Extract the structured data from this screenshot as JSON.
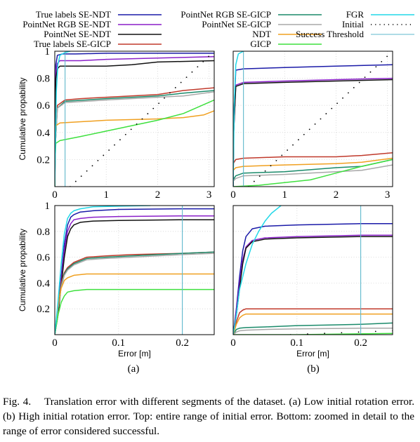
{
  "figure": {
    "label": "Fig. 4.",
    "caption": "Translation error with different segments of the dataset. (a) Low initial rotation error. (b) High initial rotation error. Top: entire range of initial error. Bottom: zoomed in detail to the range of error considered successful."
  },
  "colors": {
    "true_ndt": "#1a1aa8",
    "rgb_ndt": "#8a1fc9",
    "pn_ndt": "#111111",
    "true_gicp": "#c0392b",
    "rgb_gicp": "#1a8a6a",
    "pn_gicp": "#a8a8a8",
    "ndt": "#f0a020",
    "gicp": "#3ee03e",
    "fgr": "#22d8e8",
    "initial": "#000000",
    "threshold": "#5fb8cc"
  },
  "chart_data": [
    {
      "type": "line",
      "panel": "(a)",
      "position": "top",
      "xlabel": "",
      "ylabel": "Cumulative propability",
      "xlim": [
        0,
        3.1
      ],
      "ylim": [
        0,
        1
      ],
      "xticks": [
        "0",
        "1",
        "2",
        "3"
      ],
      "yticks": [
        "0.2",
        "0.4",
        "0.6",
        "0.8",
        "1"
      ],
      "series": [
        {
          "name": "True labels SE-NDT",
          "key": "true_ndt",
          "x": [
            0,
            0.005,
            0.02,
            0.05,
            0.15,
            0.4,
            1,
            2,
            3.1
          ],
          "y": [
            0,
            0.4,
            0.9,
            0.97,
            0.98,
            0.98,
            0.985,
            0.985,
            0.985
          ]
        },
        {
          "name": "PointNet RGB SE-NDT",
          "key": "rgb_ndt",
          "x": [
            0,
            0.005,
            0.02,
            0.05,
            0.1,
            0.5,
            1,
            2,
            3.1
          ],
          "y": [
            0,
            0.4,
            0.85,
            0.91,
            0.93,
            0.93,
            0.94,
            0.95,
            0.96
          ]
        },
        {
          "name": "PointNet SE-NDT",
          "key": "pn_ndt",
          "x": [
            0,
            0.005,
            0.02,
            0.05,
            0.1,
            1,
            1.5,
            2,
            3.1
          ],
          "y": [
            0,
            0.4,
            0.8,
            0.87,
            0.89,
            0.89,
            0.9,
            0.92,
            0.93
          ]
        },
        {
          "name": "True labels SE-GICP",
          "key": "true_gicp",
          "x": [
            0,
            0.01,
            0.05,
            0.2,
            0.5,
            1,
            2,
            2.5,
            3.1
          ],
          "y": [
            0,
            0.3,
            0.6,
            0.64,
            0.65,
            0.66,
            0.68,
            0.71,
            0.73
          ]
        },
        {
          "name": "PointNet RGB SE-GICP",
          "key": "rgb_gicp",
          "x": [
            0,
            0.01,
            0.05,
            0.2,
            1,
            2,
            2.5,
            3.1
          ],
          "y": [
            0,
            0.3,
            0.58,
            0.63,
            0.65,
            0.67,
            0.69,
            0.71
          ]
        },
        {
          "name": "PointNet SE-GICP",
          "key": "pn_gicp",
          "x": [
            0,
            0.01,
            0.05,
            0.2,
            1,
            2,
            2.5,
            3.1
          ],
          "y": [
            0,
            0.3,
            0.58,
            0.62,
            0.64,
            0.66,
            0.67,
            0.7
          ]
        },
        {
          "name": "NDT",
          "key": "ndt",
          "x": [
            0,
            0.005,
            0.02,
            0.1,
            1,
            2,
            2.5,
            2.9,
            3.1
          ],
          "y": [
            0,
            0.3,
            0.45,
            0.47,
            0.49,
            0.5,
            0.51,
            0.53,
            0.56
          ]
        },
        {
          "name": "GICP",
          "key": "gicp",
          "x": [
            0,
            0.005,
            0.02,
            0.1,
            0.5,
            1,
            1.5,
            2,
            2.5,
            3.1
          ],
          "y": [
            0,
            0.2,
            0.32,
            0.34,
            0.37,
            0.41,
            0.45,
            0.49,
            0.54,
            0.64
          ]
        },
        {
          "name": "FGR",
          "key": "fgr",
          "x": [
            0,
            0.03,
            0.06,
            0.1,
            0.2,
            0.3
          ],
          "y": [
            0,
            0.7,
            0.9,
            0.97,
            0.99,
            1
          ]
        },
        {
          "name": "Initial",
          "key": "initial",
          "style": "dotted",
          "x": [
            0.3,
            3.1
          ],
          "y": [
            0,
            1
          ]
        }
      ],
      "threshold": {
        "name": "Success Threshold",
        "x": 0.2
      }
    },
    {
      "type": "line",
      "panel": "(b)",
      "position": "top",
      "xlabel": "",
      "ylabel": "",
      "xlim": [
        0,
        3.1
      ],
      "ylim": [
        0,
        1
      ],
      "xticks": [
        "0",
        "1",
        "2",
        "3"
      ],
      "yticks": [],
      "series": [
        {
          "name": "True labels SE-NDT",
          "key": "true_ndt",
          "x": [
            0,
            0.01,
            0.05,
            0.2,
            1,
            2,
            3.1
          ],
          "y": [
            0,
            0.5,
            0.86,
            0.87,
            0.88,
            0.89,
            0.9
          ]
        },
        {
          "name": "PointNet RGB SE-NDT",
          "key": "rgb_ndt",
          "x": [
            0,
            0.01,
            0.05,
            0.2,
            1,
            2,
            3.1
          ],
          "y": [
            0,
            0.4,
            0.75,
            0.77,
            0.78,
            0.79,
            0.8
          ]
        },
        {
          "name": "PointNet SE-NDT",
          "key": "pn_ndt",
          "x": [
            0,
            0.01,
            0.05,
            0.2,
            1,
            2,
            3.1
          ],
          "y": [
            0,
            0.4,
            0.74,
            0.76,
            0.77,
            0.78,
            0.79
          ]
        },
        {
          "name": "True labels SE-GICP",
          "key": "true_gicp",
          "x": [
            0,
            0.05,
            0.2,
            1,
            2,
            2.5,
            3.1
          ],
          "y": [
            0.17,
            0.2,
            0.21,
            0.22,
            0.22,
            0.23,
            0.25
          ]
        },
        {
          "name": "PointNet RGB SE-GICP",
          "key": "rgb_gicp",
          "x": [
            0,
            0.05,
            0.2,
            1,
            2,
            2.5,
            3.1
          ],
          "y": [
            0.05,
            0.08,
            0.1,
            0.11,
            0.14,
            0.15,
            0.2
          ]
        },
        {
          "name": "PointNet SE-GICP",
          "key": "pn_gicp",
          "x": [
            0,
            0.05,
            0.2,
            1,
            2,
            2.5,
            3.1
          ],
          "y": [
            0.04,
            0.06,
            0.08,
            0.09,
            0.11,
            0.12,
            0.16
          ]
        },
        {
          "name": "NDT",
          "key": "ndt",
          "x": [
            0,
            0.05,
            0.2,
            1,
            2,
            2.5,
            3.1
          ],
          "y": [
            0.12,
            0.14,
            0.15,
            0.16,
            0.17,
            0.18,
            0.21
          ]
        },
        {
          "name": "GICP",
          "key": "gicp",
          "x": [
            0,
            0.5,
            1,
            1.5,
            2,
            2.5,
            3.1
          ],
          "y": [
            0,
            0.01,
            0.03,
            0.05,
            0.1,
            0.15,
            0.2
          ]
        },
        {
          "name": "FGR",
          "key": "fgr",
          "x": [
            0,
            0.02,
            0.05,
            0.1,
            0.2
          ],
          "y": [
            0,
            0.6,
            0.9,
            0.98,
            1
          ]
        },
        {
          "name": "Initial",
          "key": "initial",
          "style": "dotted",
          "x": [
            0.3,
            3.1
          ],
          "y": [
            0,
            1
          ]
        }
      ],
      "threshold": {
        "name": "Success Threshold",
        "x": 0.2
      }
    },
    {
      "type": "line",
      "panel": "(a)",
      "position": "bottom",
      "xlabel": "Error [m]",
      "ylabel": "Cumulative propability",
      "xlim": [
        0,
        0.25
      ],
      "ylim": [
        0,
        1
      ],
      "xticks": [
        "0",
        "0.1",
        "0.2"
      ],
      "yticks": [
        "0.2",
        "0.4",
        "0.6",
        "0.8",
        "1"
      ],
      "series": [
        {
          "name": "True labels SE-NDT",
          "key": "true_ndt",
          "x": [
            0,
            0.005,
            0.01,
            0.015,
            0.02,
            0.025,
            0.03,
            0.04,
            0.06,
            0.1,
            0.2,
            0.25
          ],
          "y": [
            0,
            0.2,
            0.45,
            0.7,
            0.85,
            0.91,
            0.93,
            0.95,
            0.96,
            0.97,
            0.975,
            0.975
          ]
        },
        {
          "name": "PointNet RGB SE-NDT",
          "key": "rgb_ndt",
          "x": [
            0,
            0.005,
            0.01,
            0.015,
            0.02,
            0.025,
            0.03,
            0.04,
            0.06,
            0.1,
            0.2,
            0.25
          ],
          "y": [
            0,
            0.18,
            0.42,
            0.65,
            0.8,
            0.86,
            0.89,
            0.9,
            0.91,
            0.915,
            0.92,
            0.92
          ]
        },
        {
          "name": "PointNet SE-NDT",
          "key": "pn_ndt",
          "x": [
            0,
            0.005,
            0.01,
            0.015,
            0.02,
            0.025,
            0.03,
            0.04,
            0.06,
            0.1,
            0.2,
            0.25
          ],
          "y": [
            0,
            0.15,
            0.38,
            0.6,
            0.76,
            0.82,
            0.85,
            0.87,
            0.88,
            0.885,
            0.89,
            0.89
          ]
        },
        {
          "name": "True labels SE-GICP",
          "key": "true_gicp",
          "x": [
            0,
            0.005,
            0.01,
            0.015,
            0.02,
            0.03,
            0.05,
            0.08,
            0.12,
            0.2,
            0.25
          ],
          "y": [
            0,
            0.22,
            0.4,
            0.48,
            0.52,
            0.56,
            0.6,
            0.61,
            0.62,
            0.63,
            0.64
          ]
        },
        {
          "name": "PointNet RGB SE-GICP",
          "key": "rgb_gicp",
          "x": [
            0,
            0.005,
            0.01,
            0.015,
            0.02,
            0.03,
            0.05,
            0.08,
            0.12,
            0.2,
            0.25
          ],
          "y": [
            0,
            0.2,
            0.38,
            0.47,
            0.51,
            0.55,
            0.59,
            0.6,
            0.61,
            0.63,
            0.64
          ]
        },
        {
          "name": "PointNet SE-GICP",
          "key": "pn_gicp",
          "x": [
            0,
            0.005,
            0.01,
            0.015,
            0.02,
            0.03,
            0.05,
            0.08,
            0.12,
            0.2,
            0.25
          ],
          "y": [
            0,
            0.2,
            0.37,
            0.46,
            0.5,
            0.54,
            0.58,
            0.59,
            0.6,
            0.62,
            0.63
          ]
        },
        {
          "name": "NDT",
          "key": "ndt",
          "x": [
            0,
            0.005,
            0.01,
            0.015,
            0.02,
            0.03,
            0.05,
            0.1,
            0.25
          ],
          "y": [
            0,
            0.22,
            0.36,
            0.42,
            0.44,
            0.46,
            0.47,
            0.47,
            0.47
          ]
        },
        {
          "name": "GICP",
          "key": "gicp",
          "x": [
            0,
            0.005,
            0.01,
            0.015,
            0.02,
            0.03,
            0.05,
            0.1,
            0.25
          ],
          "y": [
            0,
            0.15,
            0.25,
            0.3,
            0.33,
            0.34,
            0.35,
            0.35,
            0.35
          ]
        },
        {
          "name": "FGR",
          "key": "fgr",
          "x": [
            0,
            0.005,
            0.01,
            0.015,
            0.02,
            0.025,
            0.03,
            0.04,
            0.06,
            0.1,
            0.15
          ],
          "y": [
            0,
            0.25,
            0.55,
            0.78,
            0.9,
            0.94,
            0.96,
            0.975,
            0.99,
            0.995,
            1
          ]
        }
      ],
      "threshold": {
        "name": "Success Threshold",
        "x": 0.2
      }
    },
    {
      "type": "line",
      "panel": "(b)",
      "position": "bottom",
      "xlabel": "Error [m]",
      "ylabel": "",
      "xlim": [
        0,
        0.25
      ],
      "ylim": [
        0,
        1
      ],
      "xticks": [
        "0",
        "0.1",
        "0.2"
      ],
      "yticks": [],
      "series": [
        {
          "name": "True labels SE-NDT",
          "key": "true_ndt",
          "x": [
            0,
            0.005,
            0.01,
            0.015,
            0.02,
            0.03,
            0.05,
            0.1,
            0.2,
            0.25
          ],
          "y": [
            0,
            0.2,
            0.45,
            0.65,
            0.76,
            0.82,
            0.84,
            0.85,
            0.86,
            0.86
          ]
        },
        {
          "name": "PointNet RGB SE-NDT",
          "key": "rgb_ndt",
          "x": [
            0,
            0.005,
            0.01,
            0.015,
            0.02,
            0.03,
            0.05,
            0.1,
            0.2,
            0.25
          ],
          "y": [
            0,
            0.18,
            0.4,
            0.58,
            0.68,
            0.73,
            0.75,
            0.76,
            0.77,
            0.77
          ]
        },
        {
          "name": "PointNet SE-NDT",
          "key": "pn_ndt",
          "x": [
            0,
            0.005,
            0.01,
            0.015,
            0.02,
            0.03,
            0.05,
            0.1,
            0.2,
            0.25
          ],
          "y": [
            0,
            0.15,
            0.36,
            0.55,
            0.67,
            0.72,
            0.74,
            0.75,
            0.76,
            0.76
          ]
        },
        {
          "name": "True labels SE-GICP",
          "key": "true_gicp",
          "x": [
            0,
            0.005,
            0.01,
            0.015,
            0.02,
            0.05,
            0.1,
            0.25
          ],
          "y": [
            0,
            0.1,
            0.17,
            0.19,
            0.2,
            0.2,
            0.2,
            0.2
          ]
        },
        {
          "name": "PointNet RGB SE-GICP",
          "key": "rgb_gicp",
          "x": [
            0,
            0.005,
            0.01,
            0.02,
            0.05,
            0.1,
            0.15,
            0.2,
            0.25
          ],
          "y": [
            0,
            0.04,
            0.05,
            0.055,
            0.06,
            0.07,
            0.075,
            0.08,
            0.09
          ]
        },
        {
          "name": "PointNet SE-GICP",
          "key": "pn_gicp",
          "x": [
            0,
            0.005,
            0.01,
            0.02,
            0.05,
            0.1,
            0.2,
            0.25
          ],
          "y": [
            0,
            0.02,
            0.03,
            0.035,
            0.04,
            0.045,
            0.05,
            0.05
          ]
        },
        {
          "name": "NDT",
          "key": "ndt",
          "x": [
            0,
            0.005,
            0.01,
            0.015,
            0.02,
            0.05,
            0.25
          ],
          "y": [
            0,
            0.08,
            0.13,
            0.15,
            0.16,
            0.16,
            0.16
          ]
        },
        {
          "name": "GICP",
          "key": "gicp",
          "x": [
            0,
            0.1,
            0.25
          ],
          "y": [
            0,
            0,
            0.01
          ]
        },
        {
          "name": "FGR",
          "key": "fgr",
          "x": [
            0,
            0.005,
            0.01,
            0.02,
            0.03,
            0.04,
            0.05,
            0.06,
            0.07,
            0.075
          ],
          "y": [
            0,
            0.15,
            0.35,
            0.55,
            0.7,
            0.8,
            0.88,
            0.94,
            0.98,
            1
          ]
        },
        {
          "name": "Initial",
          "key": "initial",
          "style": "dotted",
          "x": [
            0.09,
            0.25
          ],
          "y": [
            0,
            0.03
          ]
        }
      ],
      "threshold": {
        "name": "Success Threshold",
        "x": 0.2
      }
    }
  ],
  "legend": [
    {
      "label": "True labels SE-NDT",
      "key": "true_ndt"
    },
    {
      "label": "PointNet RGB SE-NDT",
      "key": "rgb_ndt"
    },
    {
      "label": "PointNet SE-NDT",
      "key": "pn_ndt"
    },
    {
      "label": "True labels SE-GICP",
      "key": "true_gicp"
    },
    {
      "label": "PointNet RGB SE-GICP",
      "key": "rgb_gicp"
    },
    {
      "label": "PointNet SE-GICP",
      "key": "pn_gicp"
    },
    {
      "label": "NDT",
      "key": "ndt"
    },
    {
      "label": "GICP",
      "key": "gicp"
    },
    {
      "label": "FGR",
      "key": "fgr"
    },
    {
      "label": "Initial",
      "key": "initial",
      "style": "dotted"
    },
    {
      "label": "Success Threshold",
      "key": "threshold"
    }
  ],
  "subfigure_labels": [
    "(a)",
    "(b)"
  ]
}
